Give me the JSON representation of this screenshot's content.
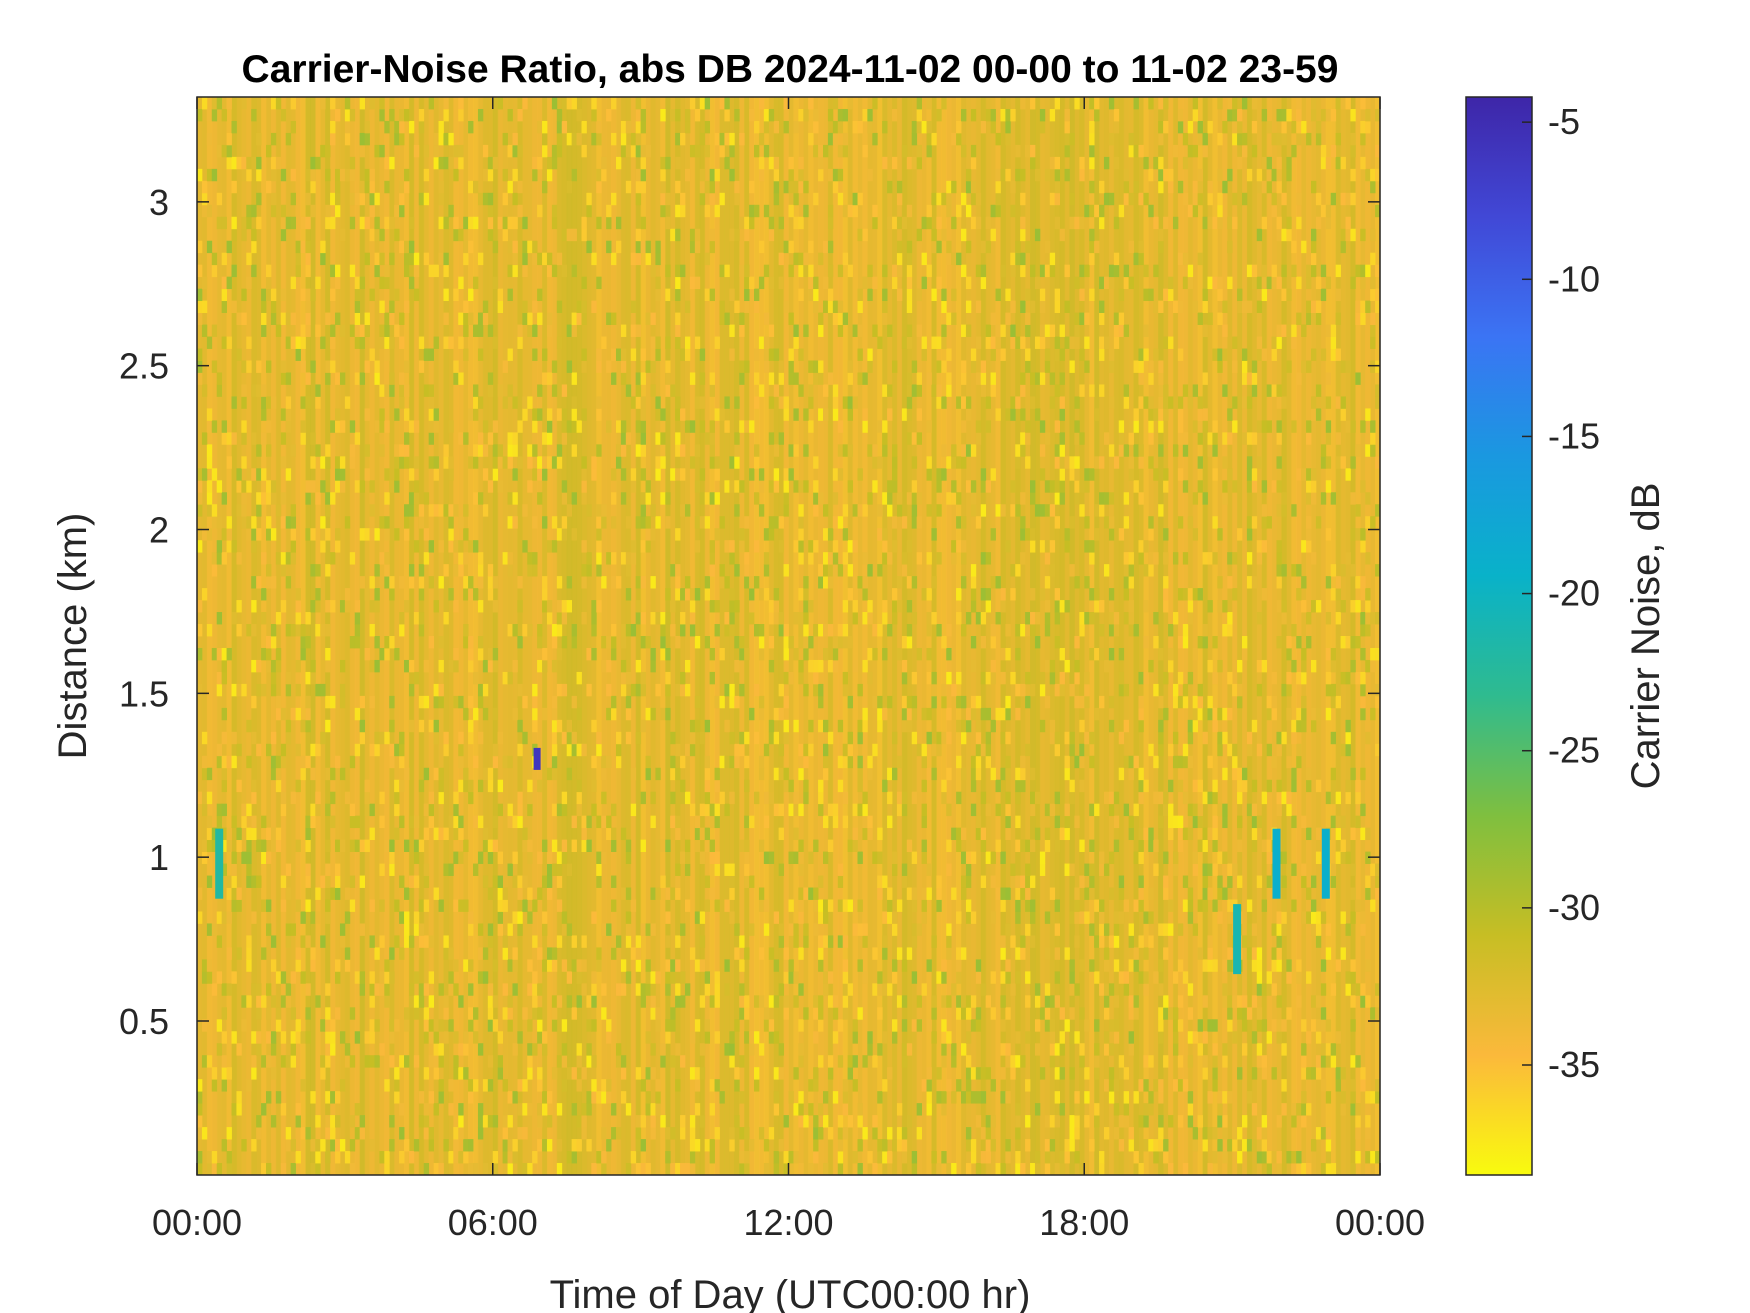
{
  "chart_data": {
    "type": "heatmap",
    "title": "Carrier-Noise Ratio, abs DB 2024-11-02 00-00 to 11-02 23-59",
    "xlabel": "Time of Day (UTC00:00 hr)",
    "ylabel": "Distance (km)",
    "colorbar_label": "Carrier Noise, dB",
    "xlim": [
      0,
      24
    ],
    "ylim": [
      0.03,
      3.32
    ],
    "x_ticks": [
      0,
      6,
      12,
      18,
      24
    ],
    "x_tick_labels": [
      "00:00",
      "06:00",
      "12:00",
      "18:00",
      "00:00"
    ],
    "y_ticks": [
      0.5,
      1,
      1.5,
      2,
      2.5,
      3
    ],
    "y_tick_labels": [
      "0.5",
      "1",
      "1.5",
      "2",
      "2.5",
      "3"
    ],
    "clim": [
      -38.5,
      -4.2
    ],
    "colorbar_ticks": [
      -35,
      -30,
      -25,
      -20,
      -15,
      -10,
      -5
    ],
    "colorbar_tick_labels": [
      "-35",
      "-30",
      "-25",
      "-20",
      "-15",
      "-10",
      "-5"
    ],
    "colormap": "parula (reversed: yellow at low values, dark blue at high values)",
    "colormap_stops": [
      "#f9fb0e",
      "#fbb93b",
      "#c7be24",
      "#7fbf3f",
      "#2fbb8f",
      "#09b2c9",
      "#1a98e0",
      "#3b74f4",
      "#4148d6",
      "#3e26a8"
    ],
    "background_level_db": -33,
    "features": [
      {
        "time_hr": 6.9,
        "distance_km": 1.3,
        "value_db": -6,
        "note": "isolated strong return"
      },
      {
        "time_hr": 21.1,
        "distance_km": 0.75,
        "value_db": -21
      },
      {
        "time_hr": 21.9,
        "distance_km": 0.98,
        "value_db": -19
      },
      {
        "time_hr": 22.9,
        "distance_km": 0.98,
        "value_db": -19
      },
      {
        "time_hr": 0.45,
        "distance_km": 0.98,
        "value_db": -22
      }
    ]
  }
}
